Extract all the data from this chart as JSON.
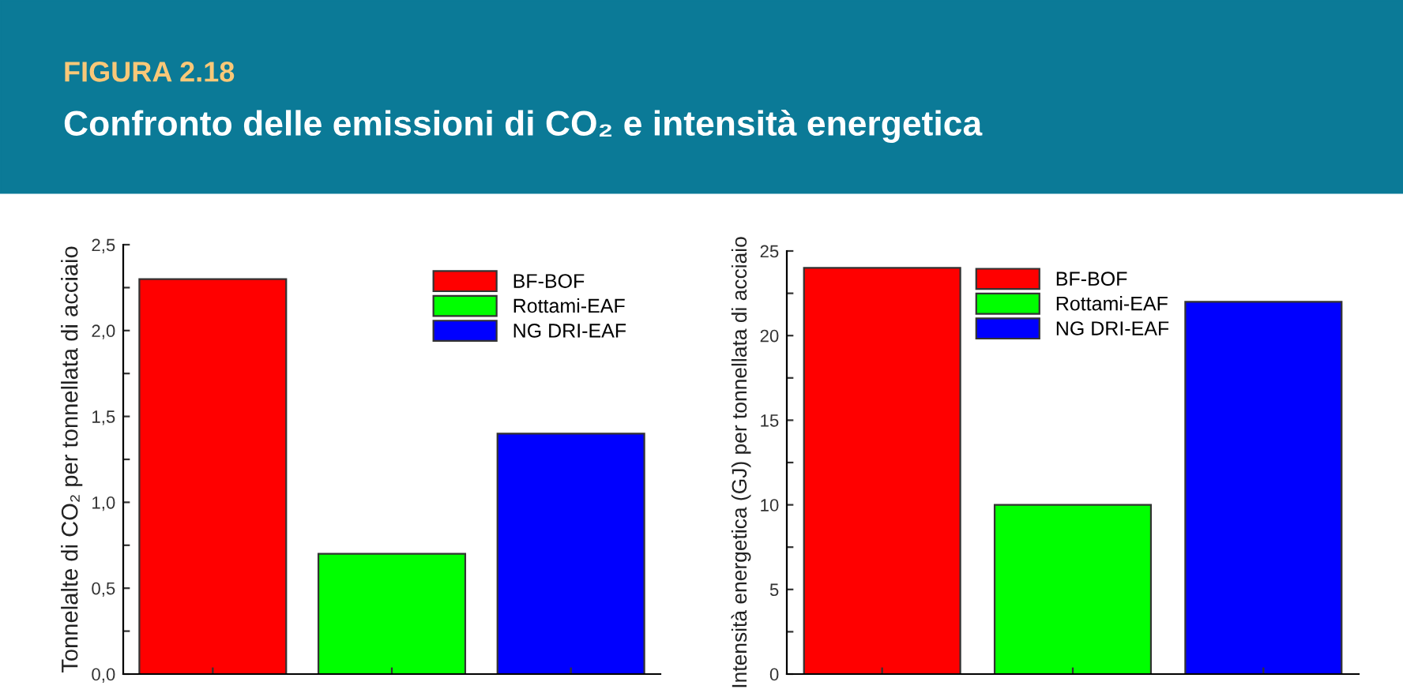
{
  "chart_data": [
    {
      "type": "bar",
      "title": "FIGURA 2.18",
      "subtitle": "Confronto delle emissioni di CO₂ e intensità energetica",
      "ylabel": "Tonnelalte di CO₂ per tonnellata di acciaio",
      "categories": [
        null,
        null,
        null
      ],
      "series": [
        {
          "name": "BF-BOF",
          "color": "#ff0000",
          "values": [
            2.3,
            null,
            null
          ]
        },
        {
          "name": "Rottami-EAF",
          "color": "#00ff00",
          "values": [
            null,
            0.7,
            null
          ]
        },
        {
          "name": "NG DRI-EAF",
          "color": "#0000ff",
          "values": [
            null,
            null,
            1.4
          ]
        }
      ],
      "ylim": [
        0,
        2.5
      ],
      "yticks": [
        {
          "value": 0,
          "label": "0,0"
        },
        {
          "value": 0.25,
          "label": null
        },
        {
          "value": 0.5,
          "label": "0,5"
        },
        {
          "value": 0.75,
          "label": null
        },
        {
          "value": 1.0,
          "label": "1,0"
        },
        {
          "value": 1.25,
          "label": null
        },
        {
          "value": 1.5,
          "label": "1,5"
        },
        {
          "value": 1.75,
          "label": null
        },
        {
          "value": 2.0,
          "label": "2,0"
        },
        {
          "value": 2.25,
          "label": null
        },
        {
          "value": 2.5,
          "label": "2,5"
        }
      ],
      "grid": false,
      "legend": "top right"
    },
    {
      "type": "bar",
      "ylabel": "Intensità energetica (GJ) per tonnellata di acciaio",
      "categories": [
        null,
        null,
        null
      ],
      "series": [
        {
          "name": "BF-BOF",
          "color": "#ff0000",
          "values": [
            24,
            null,
            null
          ]
        },
        {
          "name": "Rottami-EAF",
          "color": "#00ff00",
          "values": [
            null,
            10,
            null
          ]
        },
        {
          "name": "NG DRI-EAF",
          "color": "#0000ff",
          "values": [
            null,
            null,
            22
          ]
        }
      ],
      "ylim": [
        0,
        25
      ],
      "yticks": [
        0,
        {
          "value": 2.5,
          "label": null
        },
        5,
        {
          "value": 7.5,
          "label": null
        },
        10,
        {
          "value": 12.5,
          "label": null
        },
        15,
        {
          "value": 17.5,
          "label": null
        },
        20,
        {
          "value": 22.5,
          "label": null
        },
        25
      ],
      "grid": false,
      "legend": "top"
    }
  ]
}
